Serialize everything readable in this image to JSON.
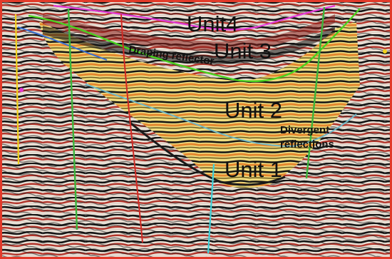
{
  "image": {
    "description_free": true,
    "border_color": "#e23a2a",
    "labels": {
      "unit4": "Unit4",
      "unit3": "Unit 3",
      "unit2": "Unit 2",
      "unit1": "Unit 1",
      "draping": "Draping reflector",
      "divergent_line1": "Divergent",
      "divergent_line2": "reflections"
    },
    "colors": {
      "trough": "#151515",
      "peak_red": "#b2342a",
      "peak_orange": "#e4872f",
      "fill_yellow": "#f2e07a",
      "horizon_magenta": "#e23ad8",
      "horizon_green": "#49d31f",
      "horizon_blue": "#3a6fd0",
      "horizon_cyan": "#6fb8c8",
      "fault_green": "#3bb53a",
      "fault_yellow": "#f2d21a",
      "fault_cyan": "#3fd0d8"
    }
  }
}
